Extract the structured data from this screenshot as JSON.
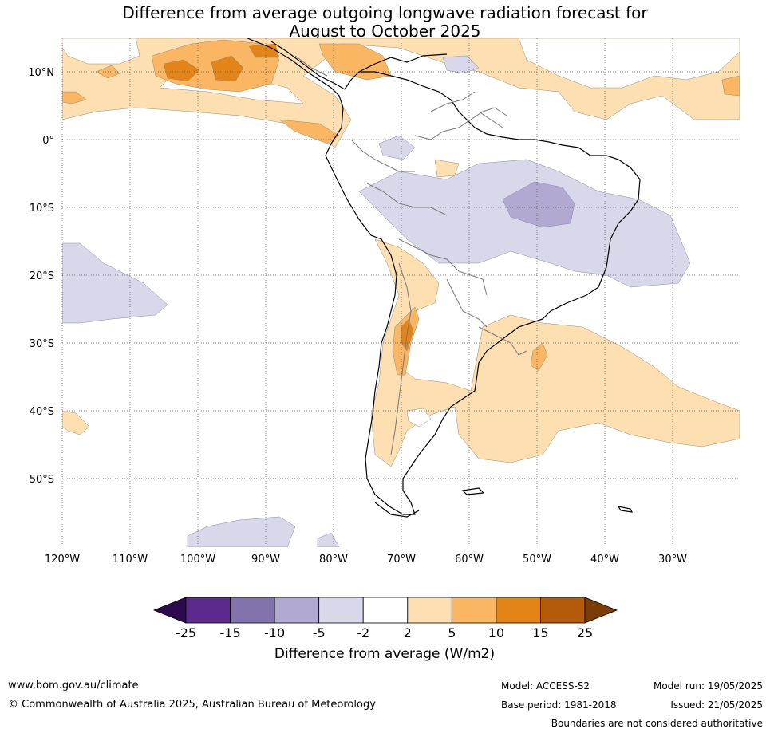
{
  "title_line1": "Difference from average outgoing longwave radiation forecast for",
  "title_line2": "August to October 2025",
  "map": {
    "lat_labels": [
      "10°N",
      "0°",
      "10°S",
      "20°S",
      "30°S",
      "40°S",
      "50°S"
    ],
    "lon_labels": [
      "120°W",
      "110°W",
      "100°W",
      "90°W",
      "80°W",
      "70°W",
      "60°W",
      "50°W",
      "40°W",
      "30°W"
    ],
    "lat_range": [
      -60,
      15
    ],
    "lon_range": [
      -120,
      -20
    ],
    "grid": true,
    "region": "South America"
  },
  "colorbar": {
    "title": "Difference from average (W/m2)",
    "ticks": [
      "-25",
      "-15",
      "-10",
      "-5",
      "-2",
      "2",
      "5",
      "10",
      "15",
      "25"
    ],
    "colors": [
      "#2d0a4e",
      "#5b2a8c",
      "#8273ad",
      "#b1a9d2",
      "#d8d8ea",
      "#ffffff",
      "#fedfb2",
      "#fbb663",
      "#e28417",
      "#b45a0b",
      "#7a3d07"
    ],
    "extend": "both"
  },
  "footer": {
    "url": "www.bom.gov.au/climate",
    "copyright": "© Commonwealth of Australia 2025, Australian Bureau of Meteorology",
    "model": "Model: ACCESS-S2",
    "base_period": "Base period: 1981-2018",
    "model_run": "Model run: 19/05/2025",
    "issued": "Issued: 21/05/2025",
    "disclaimer": "Boundaries are not considered authoritative"
  }
}
